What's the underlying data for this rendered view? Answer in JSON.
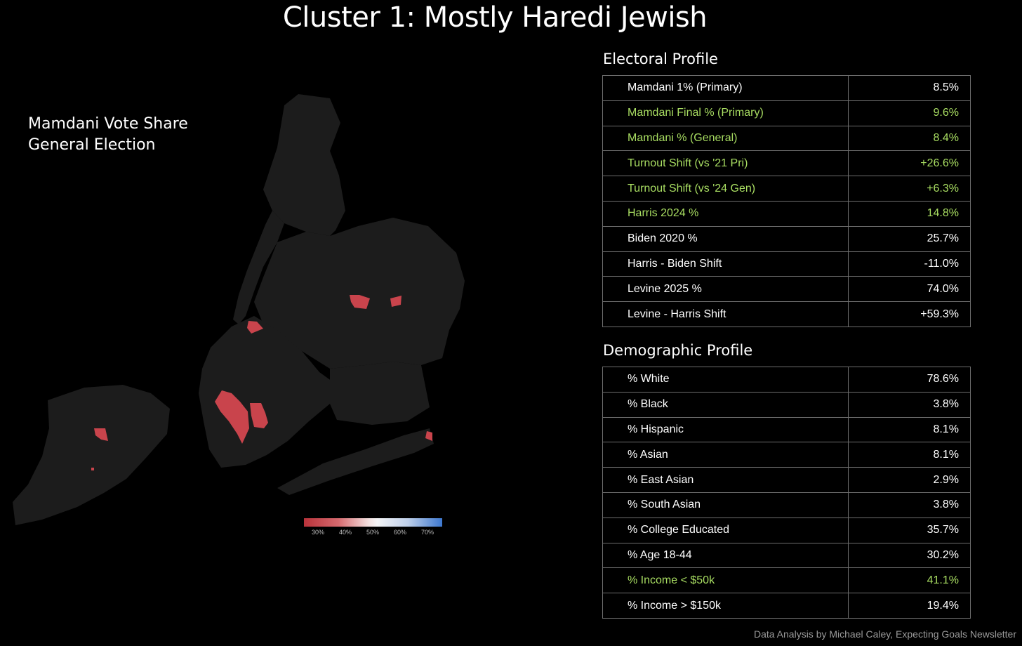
{
  "title": "Cluster 1: Mostly Haredi Jewish",
  "map": {
    "label_line1": "Mamdani Vote Share",
    "label_line2": "General Election",
    "land_color": "#1c1c1c",
    "highlight_color": "#c9444c",
    "legend_ticks": [
      "30%",
      "40%",
      "50%",
      "60%",
      "70%"
    ]
  },
  "electoral": {
    "heading": "Electoral Profile",
    "rows": [
      {
        "label": "Mamdani 1% (Primary)",
        "value": "8.5%",
        "highlight": false
      },
      {
        "label": "Mamdani Final % (Primary)",
        "value": "9.6%",
        "highlight": true
      },
      {
        "label": "Mamdani % (General)",
        "value": "8.4%",
        "highlight": true
      },
      {
        "label": "Turnout Shift (vs '21 Pri)",
        "value": "+26.6%",
        "highlight": true
      },
      {
        "label": "Turnout Shift (vs '24 Gen)",
        "value": "+6.3%",
        "highlight": true
      },
      {
        "label": "Harris 2024 %",
        "value": "14.8%",
        "highlight": true
      },
      {
        "label": "Biden 2020 %",
        "value": "25.7%",
        "highlight": false
      },
      {
        "label": "Harris - Biden Shift",
        "value": "-11.0%",
        "highlight": false
      },
      {
        "label": "Levine 2025 %",
        "value": "74.0%",
        "highlight": false
      },
      {
        "label": "Levine - Harris Shift",
        "value": "+59.3%",
        "highlight": false
      }
    ]
  },
  "demographic": {
    "heading": "Demographic Profile",
    "rows": [
      {
        "label": "% White",
        "value": "78.6%",
        "highlight": false
      },
      {
        "label": "% Black",
        "value": "3.8%",
        "highlight": false
      },
      {
        "label": "% Hispanic",
        "value": "8.1%",
        "highlight": false
      },
      {
        "label": "% Asian",
        "value": "8.1%",
        "highlight": false
      },
      {
        "label": "% East Asian",
        "value": "2.9%",
        "highlight": false
      },
      {
        "label": "% South Asian",
        "value": "3.8%",
        "highlight": false
      },
      {
        "label": "% College Educated",
        "value": "35.7%",
        "highlight": false
      },
      {
        "label": "% Age 18-44",
        "value": "30.2%",
        "highlight": false
      },
      {
        "label": "% Income < $50k",
        "value": "41.1%",
        "highlight": true
      },
      {
        "label": "% Income > $150k",
        "value": "19.4%",
        "highlight": false
      }
    ]
  },
  "footer": "Data Analysis by Michael Caley, Expecting Goals Newsletter",
  "colors": {
    "highlight_text": "#a9de62",
    "normal_text": "#ffffff",
    "border": "#6e6e6e"
  }
}
